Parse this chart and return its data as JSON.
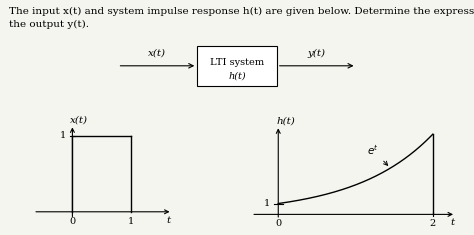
{
  "bg_color": "#f5f5f0",
  "text_color": "#000000",
  "header_text": "The input x(t) and system impulse response h(t) are given below. Determine the expression for\nthe output y(t).",
  "header_fontsize": 7.5,
  "block_label_line1": "LTI system",
  "block_label_line2": "h(t)",
  "block_x_label": "x(t)",
  "block_y_label": "y(t)",
  "left_plot_title": "x(t)",
  "right_plot_title": "h(t)",
  "left_xlabel": "t",
  "right_xlabel": "t"
}
